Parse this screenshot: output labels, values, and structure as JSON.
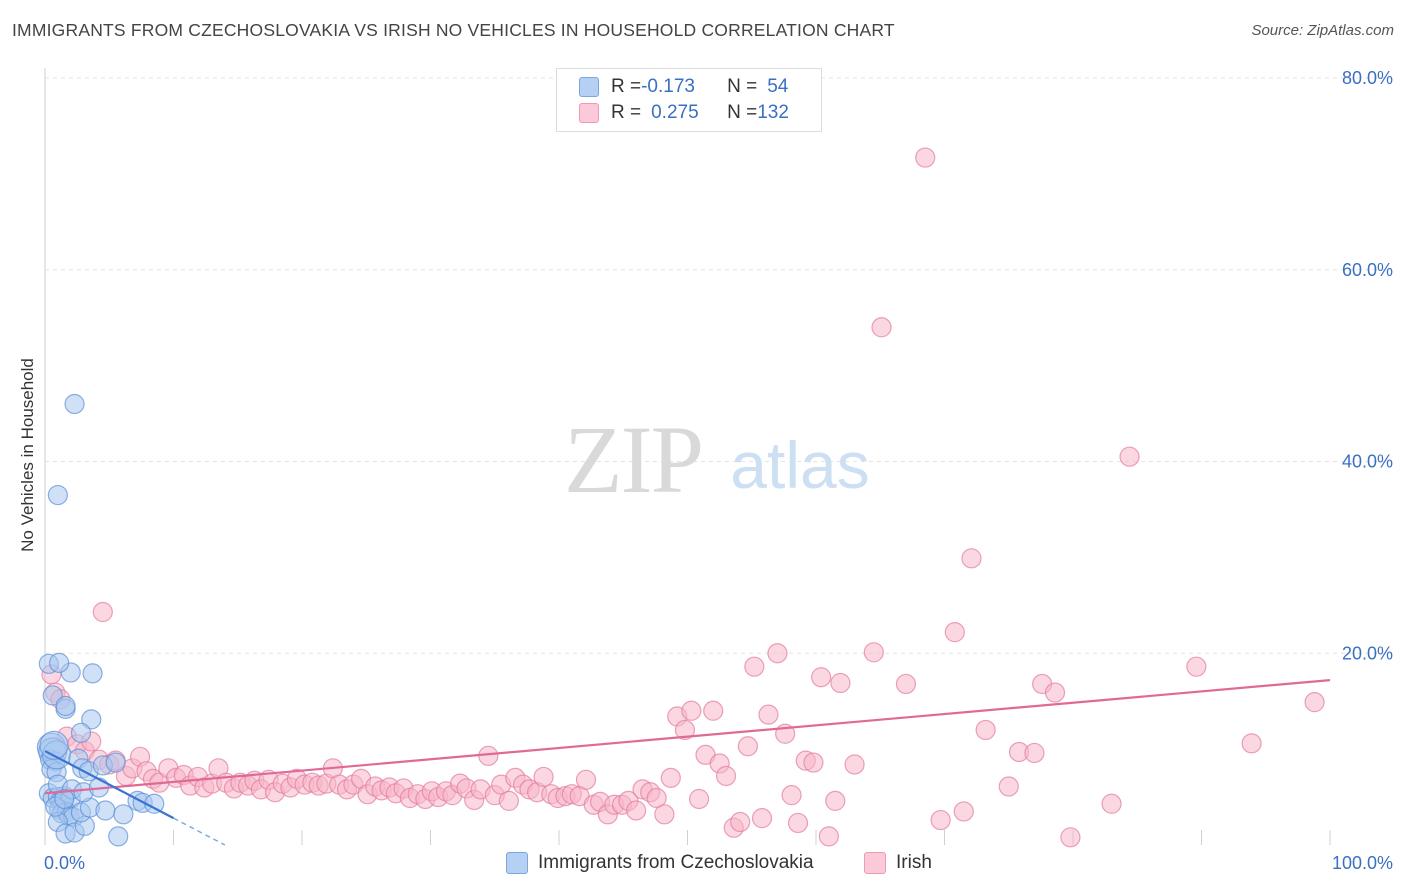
{
  "header": {
    "title": "IMMIGRANTS FROM CZECHOSLOVAKIA VS IRISH NO VEHICLES IN HOUSEHOLD CORRELATION CHART",
    "source": "Source: ZipAtlas.com"
  },
  "watermark": {
    "zip": "ZIP",
    "atlas": "atlas"
  },
  "legend": {
    "rows": [
      {
        "r_label": "R = ",
        "r_value": "-0.173",
        "n_label": "N = ",
        "n_value": "54",
        "color": "#a8c6f0"
      },
      {
        "r_label": "R = ",
        "r_value": "0.275",
        "n_label": "N = ",
        "n_value": "132",
        "color": "#f7b6c8"
      }
    ]
  },
  "chart_data": {
    "type": "scatter",
    "title": "IMMIGRANTS FROM CZECHOSLOVAKIA VS IRISH NO VEHICLES IN HOUSEHOLD CORRELATION CHART",
    "xlabel": "",
    "ylabel": "No Vehicles in Household",
    "xlim": [
      0,
      100
    ],
    "ylim": [
      0,
      80
    ],
    "y_ticks": [
      20,
      40,
      60,
      80
    ],
    "y_tick_labels": [
      "20.0%",
      "40.0%",
      "60.0%",
      "80.0%"
    ],
    "x_tick_labels": [
      "0.0%",
      "100.0%"
    ],
    "grid": true,
    "series": [
      {
        "name": "Immigrants from Czechoslovakia",
        "color": "#5b8fd6",
        "fill": "#aac8f0",
        "trend": {
          "x0": 0,
          "y0": 9.8,
          "x1": 10,
          "y1": 2.8,
          "dash_to_x": 14
        },
        "points": [
          [
            0.3,
            18.9
          ],
          [
            0.5,
            10.2
          ],
          [
            0.6,
            9.7
          ],
          [
            0.4,
            8.9
          ],
          [
            0.8,
            8.7
          ],
          [
            0.5,
            7.9
          ],
          [
            0.9,
            7.6
          ],
          [
            0.3,
            5.4
          ],
          [
            0.6,
            4.9
          ],
          [
            1.0,
            5.0
          ],
          [
            1.2,
            4.6
          ],
          [
            1.4,
            4.2
          ],
          [
            1.5,
            5.1
          ],
          [
            2.0,
            4.8
          ],
          [
            1.1,
            3.7
          ],
          [
            1.3,
            3.3
          ],
          [
            1.7,
            3.4
          ],
          [
            1.9,
            3.0
          ],
          [
            2.2,
            2.9
          ],
          [
            1.0,
            2.4
          ],
          [
            1.6,
            1.2
          ],
          [
            2.3,
            1.3
          ],
          [
            3.1,
            2.0
          ],
          [
            2.8,
            3.4
          ],
          [
            3.5,
            3.9
          ],
          [
            4.7,
            3.6
          ],
          [
            6.1,
            3.2
          ],
          [
            7.2,
            4.6
          ],
          [
            7.6,
            4.4
          ],
          [
            8.5,
            4.3
          ],
          [
            1.0,
            6.3
          ],
          [
            2.1,
            5.8
          ],
          [
            3.0,
            5.5
          ],
          [
            4.2,
            6.0
          ],
          [
            0.9,
            9.4
          ],
          [
            2.6,
            9.0
          ],
          [
            2.9,
            8.0
          ],
          [
            3.4,
            7.7
          ],
          [
            0.6,
            15.6
          ],
          [
            1.6,
            14.2
          ],
          [
            3.6,
            13.1
          ],
          [
            2.8,
            11.7
          ],
          [
            0.7,
            10.4
          ],
          [
            1.6,
            14.5
          ],
          [
            2.0,
            18.0
          ],
          [
            3.7,
            17.9
          ],
          [
            1.1,
            19.0
          ],
          [
            2.3,
            46.0
          ],
          [
            1.0,
            36.5
          ],
          [
            5.7,
            0.9
          ],
          [
            4.5,
            8.3
          ],
          [
            5.5,
            8.6
          ],
          [
            0.8,
            4.0
          ],
          [
            1.5,
            4.8
          ]
        ]
      },
      {
        "name": "Irish",
        "color": "#e37aa0",
        "fill": "#f7b6c8",
        "trend": {
          "x0": 0,
          "y0": 5.4,
          "x1": 100,
          "y1": 17.2
        },
        "points": [
          [
            0.5,
            17.8
          ],
          [
            0.8,
            15.9
          ],
          [
            1.2,
            15.2
          ],
          [
            1.7,
            11.3
          ],
          [
            2.5,
            10.5
          ],
          [
            3.1,
            9.8
          ],
          [
            3.6,
            10.8
          ],
          [
            4.2,
            8.9
          ],
          [
            5.0,
            8.4
          ],
          [
            5.5,
            8.8
          ],
          [
            6.3,
            7.2
          ],
          [
            6.8,
            8.0
          ],
          [
            7.4,
            9.2
          ],
          [
            7.9,
            7.7
          ],
          [
            8.4,
            6.9
          ],
          [
            8.9,
            6.5
          ],
          [
            9.6,
            8.0
          ],
          [
            10.2,
            7.0
          ],
          [
            10.8,
            7.3
          ],
          [
            11.3,
            6.2
          ],
          [
            11.9,
            7.1
          ],
          [
            12.4,
            6.0
          ],
          [
            13.0,
            6.4
          ],
          [
            13.5,
            8.0
          ],
          [
            14.1,
            6.5
          ],
          [
            14.7,
            5.9
          ],
          [
            15.2,
            6.5
          ],
          [
            15.8,
            6.2
          ],
          [
            16.3,
            6.7
          ],
          [
            16.8,
            5.8
          ],
          [
            17.4,
            6.8
          ],
          [
            17.9,
            5.5
          ],
          [
            18.5,
            6.4
          ],
          [
            19.1,
            6.0
          ],
          [
            19.6,
            6.9
          ],
          [
            20.2,
            6.3
          ],
          [
            20.8,
            6.5
          ],
          [
            21.3,
            6.2
          ],
          [
            21.9,
            6.4
          ],
          [
            22.4,
            8.0
          ],
          [
            22.9,
            6.3
          ],
          [
            23.5,
            5.8
          ],
          [
            24.0,
            6.3
          ],
          [
            24.6,
            6.9
          ],
          [
            25.1,
            5.3
          ],
          [
            25.7,
            6.1
          ],
          [
            26.2,
            5.7
          ],
          [
            26.8,
            6.0
          ],
          [
            27.3,
            5.4
          ],
          [
            27.9,
            5.9
          ],
          [
            28.4,
            4.9
          ],
          [
            29.0,
            5.3
          ],
          [
            29.6,
            4.8
          ],
          [
            30.1,
            5.6
          ],
          [
            30.6,
            5.0
          ],
          [
            31.2,
            5.6
          ],
          [
            31.7,
            5.2
          ],
          [
            32.3,
            6.4
          ],
          [
            32.8,
            5.9
          ],
          [
            33.4,
            4.7
          ],
          [
            33.9,
            5.8
          ],
          [
            34.5,
            9.3
          ],
          [
            35.0,
            5.2
          ],
          [
            35.5,
            6.3
          ],
          [
            36.1,
            4.6
          ],
          [
            36.6,
            7.0
          ],
          [
            37.2,
            6.3
          ],
          [
            37.7,
            5.8
          ],
          [
            38.3,
            5.5
          ],
          [
            38.8,
            7.1
          ],
          [
            39.4,
            5.3
          ],
          [
            39.9,
            4.9
          ],
          [
            40.5,
            5.1
          ],
          [
            41.0,
            5.3
          ],
          [
            41.6,
            5.1
          ],
          [
            42.1,
            6.8
          ],
          [
            42.7,
            4.2
          ],
          [
            43.2,
            4.5
          ],
          [
            43.8,
            3.2
          ],
          [
            44.3,
            4.2
          ],
          [
            44.9,
            4.2
          ],
          [
            45.4,
            4.6
          ],
          [
            46.0,
            3.6
          ],
          [
            46.5,
            5.8
          ],
          [
            47.1,
            5.5
          ],
          [
            47.6,
            4.9
          ],
          [
            48.2,
            3.2
          ],
          [
            48.7,
            7.0
          ],
          [
            49.2,
            13.4
          ],
          [
            49.8,
            12.0
          ],
          [
            50.3,
            14.0
          ],
          [
            50.9,
            4.8
          ],
          [
            51.4,
            9.4
          ],
          [
            52.0,
            14.0
          ],
          [
            52.5,
            8.5
          ],
          [
            53.0,
            7.2
          ],
          [
            53.6,
            1.8
          ],
          [
            54.1,
            2.4
          ],
          [
            54.7,
            10.3
          ],
          [
            55.2,
            18.6
          ],
          [
            55.8,
            2.8
          ],
          [
            56.3,
            13.6
          ],
          [
            57.0,
            20.0
          ],
          [
            57.6,
            11.6
          ],
          [
            58.1,
            5.2
          ],
          [
            58.6,
            2.3
          ],
          [
            59.2,
            8.8
          ],
          [
            59.8,
            8.6
          ],
          [
            60.4,
            17.5
          ],
          [
            61.0,
            0.9
          ],
          [
            61.5,
            4.6
          ],
          [
            61.9,
            16.9
          ],
          [
            63.0,
            8.4
          ],
          [
            64.5,
            20.1
          ],
          [
            65.1,
            54.0
          ],
          [
            67.0,
            16.8
          ],
          [
            68.5,
            71.7
          ],
          [
            69.7,
            2.6
          ],
          [
            70.8,
            22.2
          ],
          [
            71.5,
            3.5
          ],
          [
            72.1,
            29.9
          ],
          [
            73.2,
            12.0
          ],
          [
            75.0,
            6.1
          ],
          [
            75.8,
            9.7
          ],
          [
            77.0,
            9.6
          ],
          [
            77.6,
            16.8
          ],
          [
            78.6,
            15.9
          ],
          [
            79.8,
            0.8
          ],
          [
            83.0,
            4.3
          ],
          [
            84.4,
            40.5
          ],
          [
            89.6,
            18.6
          ],
          [
            93.9,
            10.6
          ],
          [
            98.8,
            14.9
          ],
          [
            4.5,
            24.3
          ]
        ]
      }
    ]
  },
  "bottom_legend": [
    {
      "label": "Immigrants from Czechoslovakia",
      "color": "#a8c6f0",
      "border": "#5b8fd6"
    },
    {
      "label": "Irish",
      "color": "#f7b6c8",
      "border": "#e37aa0"
    }
  ]
}
